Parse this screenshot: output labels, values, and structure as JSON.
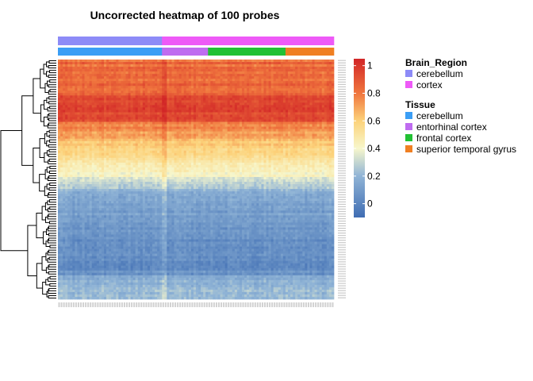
{
  "chart_data": {
    "type": "heatmap",
    "title": "Uncorrected heatmap of 100 probes",
    "n_probes": 100,
    "sample_groups": [
      {
        "brain_region": "cerebellum",
        "tissue": "cerebellum",
        "n_samples": 43
      },
      {
        "brain_region": "cortex",
        "tissue": "entorhinal cortex",
        "n_samples": 19
      },
      {
        "brain_region": "cortex",
        "tissue": "frontal cortex",
        "n_samples": 32
      },
      {
        "brain_region": "cortex",
        "tissue": "superior temporal gyrus",
        "n_samples": 20
      }
    ],
    "row_value_profile": [
      0.82,
      0.85,
      0.8,
      0.88,
      0.84,
      0.81,
      0.86,
      0.83,
      0.79,
      0.84,
      0.87,
      0.82,
      0.8,
      0.85,
      0.88,
      0.93,
      0.95,
      0.96,
      0.94,
      0.97,
      0.95,
      0.96,
      0.94,
      0.95,
      0.93,
      0.92,
      0.78,
      0.74,
      0.76,
      0.72,
      0.7,
      0.73,
      0.68,
      0.66,
      0.62,
      0.64,
      0.6,
      0.58,
      0.55,
      0.57,
      0.53,
      0.5,
      0.52,
      0.48,
      0.46,
      0.44,
      0.45,
      0.42,
      0.4,
      0.37,
      0.33,
      0.3,
      0.26,
      0.24,
      0.2,
      0.18,
      0.16,
      0.15,
      0.16,
      0.14,
      0.12,
      0.13,
      0.11,
      0.1,
      0.12,
      0.09,
      0.08,
      0.1,
      0.07,
      0.09,
      0.06,
      0.08,
      0.05,
      0.07,
      0.06,
      0.04,
      0.05,
      0.06,
      0.04,
      0.05,
      0.03,
      0.04,
      0.05,
      0.03,
      0.04,
      0.02,
      0.03,
      0.04,
      0.05,
      0.06,
      0.15,
      0.18,
      0.2,
      0.17,
      0.22,
      0.19,
      0.21,
      0.18,
      0.2,
      0.19
    ],
    "color_scale": {
      "min": -0.1,
      "max": 1.05,
      "breaks": [
        0,
        0.2,
        0.4,
        0.6,
        0.8,
        1
      ],
      "tick_labels": [
        "0",
        "0.2",
        "0.4",
        "0.6",
        "0.8",
        "1"
      ],
      "stops": [
        {
          "value": -0.1,
          "color": "#3f6db3"
        },
        {
          "value": 0.2,
          "color": "#90b4d6"
        },
        {
          "value": 0.4,
          "color": "#f7f7cc"
        },
        {
          "value": 0.6,
          "color": "#fcd27a"
        },
        {
          "value": 0.8,
          "color": "#f0763e"
        },
        {
          "value": 1.05,
          "color": "#d22627"
        }
      ]
    },
    "legends": [
      {
        "title": "Brain_Region",
        "entries": [
          {
            "label": "cerebellum",
            "color": "#8d8bf7"
          },
          {
            "label": "cortex",
            "color": "#ee5af7"
          }
        ]
      },
      {
        "title": "Tissue",
        "entries": [
          {
            "label": "cerebellum",
            "color": "#3b9ef5"
          },
          {
            "label": "entorhinal cortex",
            "color": "#bf6cf0"
          },
          {
            "label": "frontal cortex",
            "color": "#22c134"
          },
          {
            "label": "superior temporal gyrus",
            "color": "#f07f22"
          }
        ]
      }
    ]
  }
}
